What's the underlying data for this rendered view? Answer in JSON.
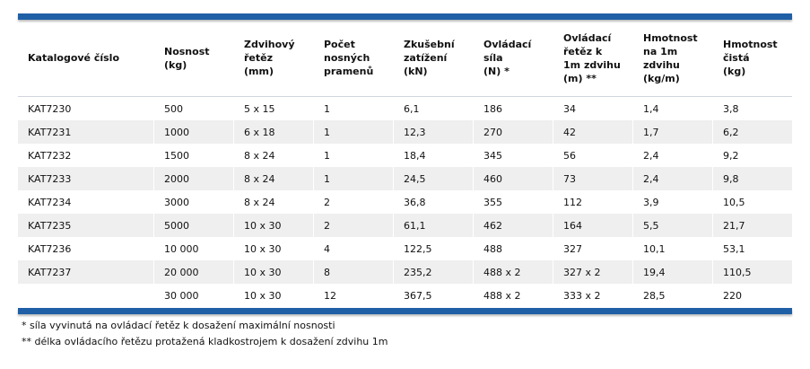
{
  "table": {
    "header": [
      [
        "Katalogové číslo"
      ],
      [
        "Nosnost",
        "(kg)"
      ],
      [
        "Zdvihový",
        "řetěz",
        "(mm)"
      ],
      [
        "Počet",
        "nosných",
        "pramenů"
      ],
      [
        "Zkušební",
        "zatížení",
        "(kN)"
      ],
      [
        "Ovládací",
        "síla",
        "(N) *"
      ],
      [
        "Ovládací",
        "řetěz k",
        "1m zdvihu",
        "(m) **"
      ],
      [
        "Hmotnost",
        "na 1m",
        "zdvihu",
        "(kg/m)"
      ],
      [
        "Hmotnost",
        "čistá",
        "(kg)"
      ]
    ],
    "rows": [
      [
        "KAT7230",
        "500",
        "5 x 15",
        "1",
        "6,1",
        "186",
        "34",
        "1,4",
        "3,8"
      ],
      [
        "KAT7231",
        "1000",
        "6 x 18",
        "1",
        "12,3",
        "270",
        "42",
        "1,7",
        "6,2"
      ],
      [
        "KAT7232",
        "1500",
        "8 x 24",
        "1",
        "18,4",
        "345",
        "56",
        "2,4",
        "9,2"
      ],
      [
        "KAT7233",
        "2000",
        "8 x 24",
        "1",
        "24,5",
        "460",
        "73",
        "2,4",
        "9,8"
      ],
      [
        "KAT7234",
        "3000",
        "8 x 24",
        "2",
        "36,8",
        "355",
        "112",
        "3,9",
        "10,5"
      ],
      [
        "KAT7235",
        "5000",
        "10 x 30",
        "2",
        "61,1",
        "462",
        "164",
        "5,5",
        "21,7"
      ],
      [
        "KAT7236",
        "10 000",
        "10 x 30",
        "4",
        "122,5",
        "488",
        "327",
        "10,1",
        "53,1"
      ],
      [
        "KAT7237",
        "20 000",
        "10 x 30",
        "8",
        "235,2",
        "488 x 2",
        "327 x 2",
        "19,4",
        "110,5"
      ],
      [
        null,
        "30 000",
        "10 x 30",
        "12",
        "367,5",
        "488 x 2",
        "333 x 2",
        "28,5",
        "220"
      ]
    ]
  },
  "footnotes": [
    "* síla vyvinutá na ovládací řetěz k dosažení maximální nosnosti",
    "** délka ovládacího řetězu protažená kladkostrojem k dosažení zdvihu 1m"
  ]
}
